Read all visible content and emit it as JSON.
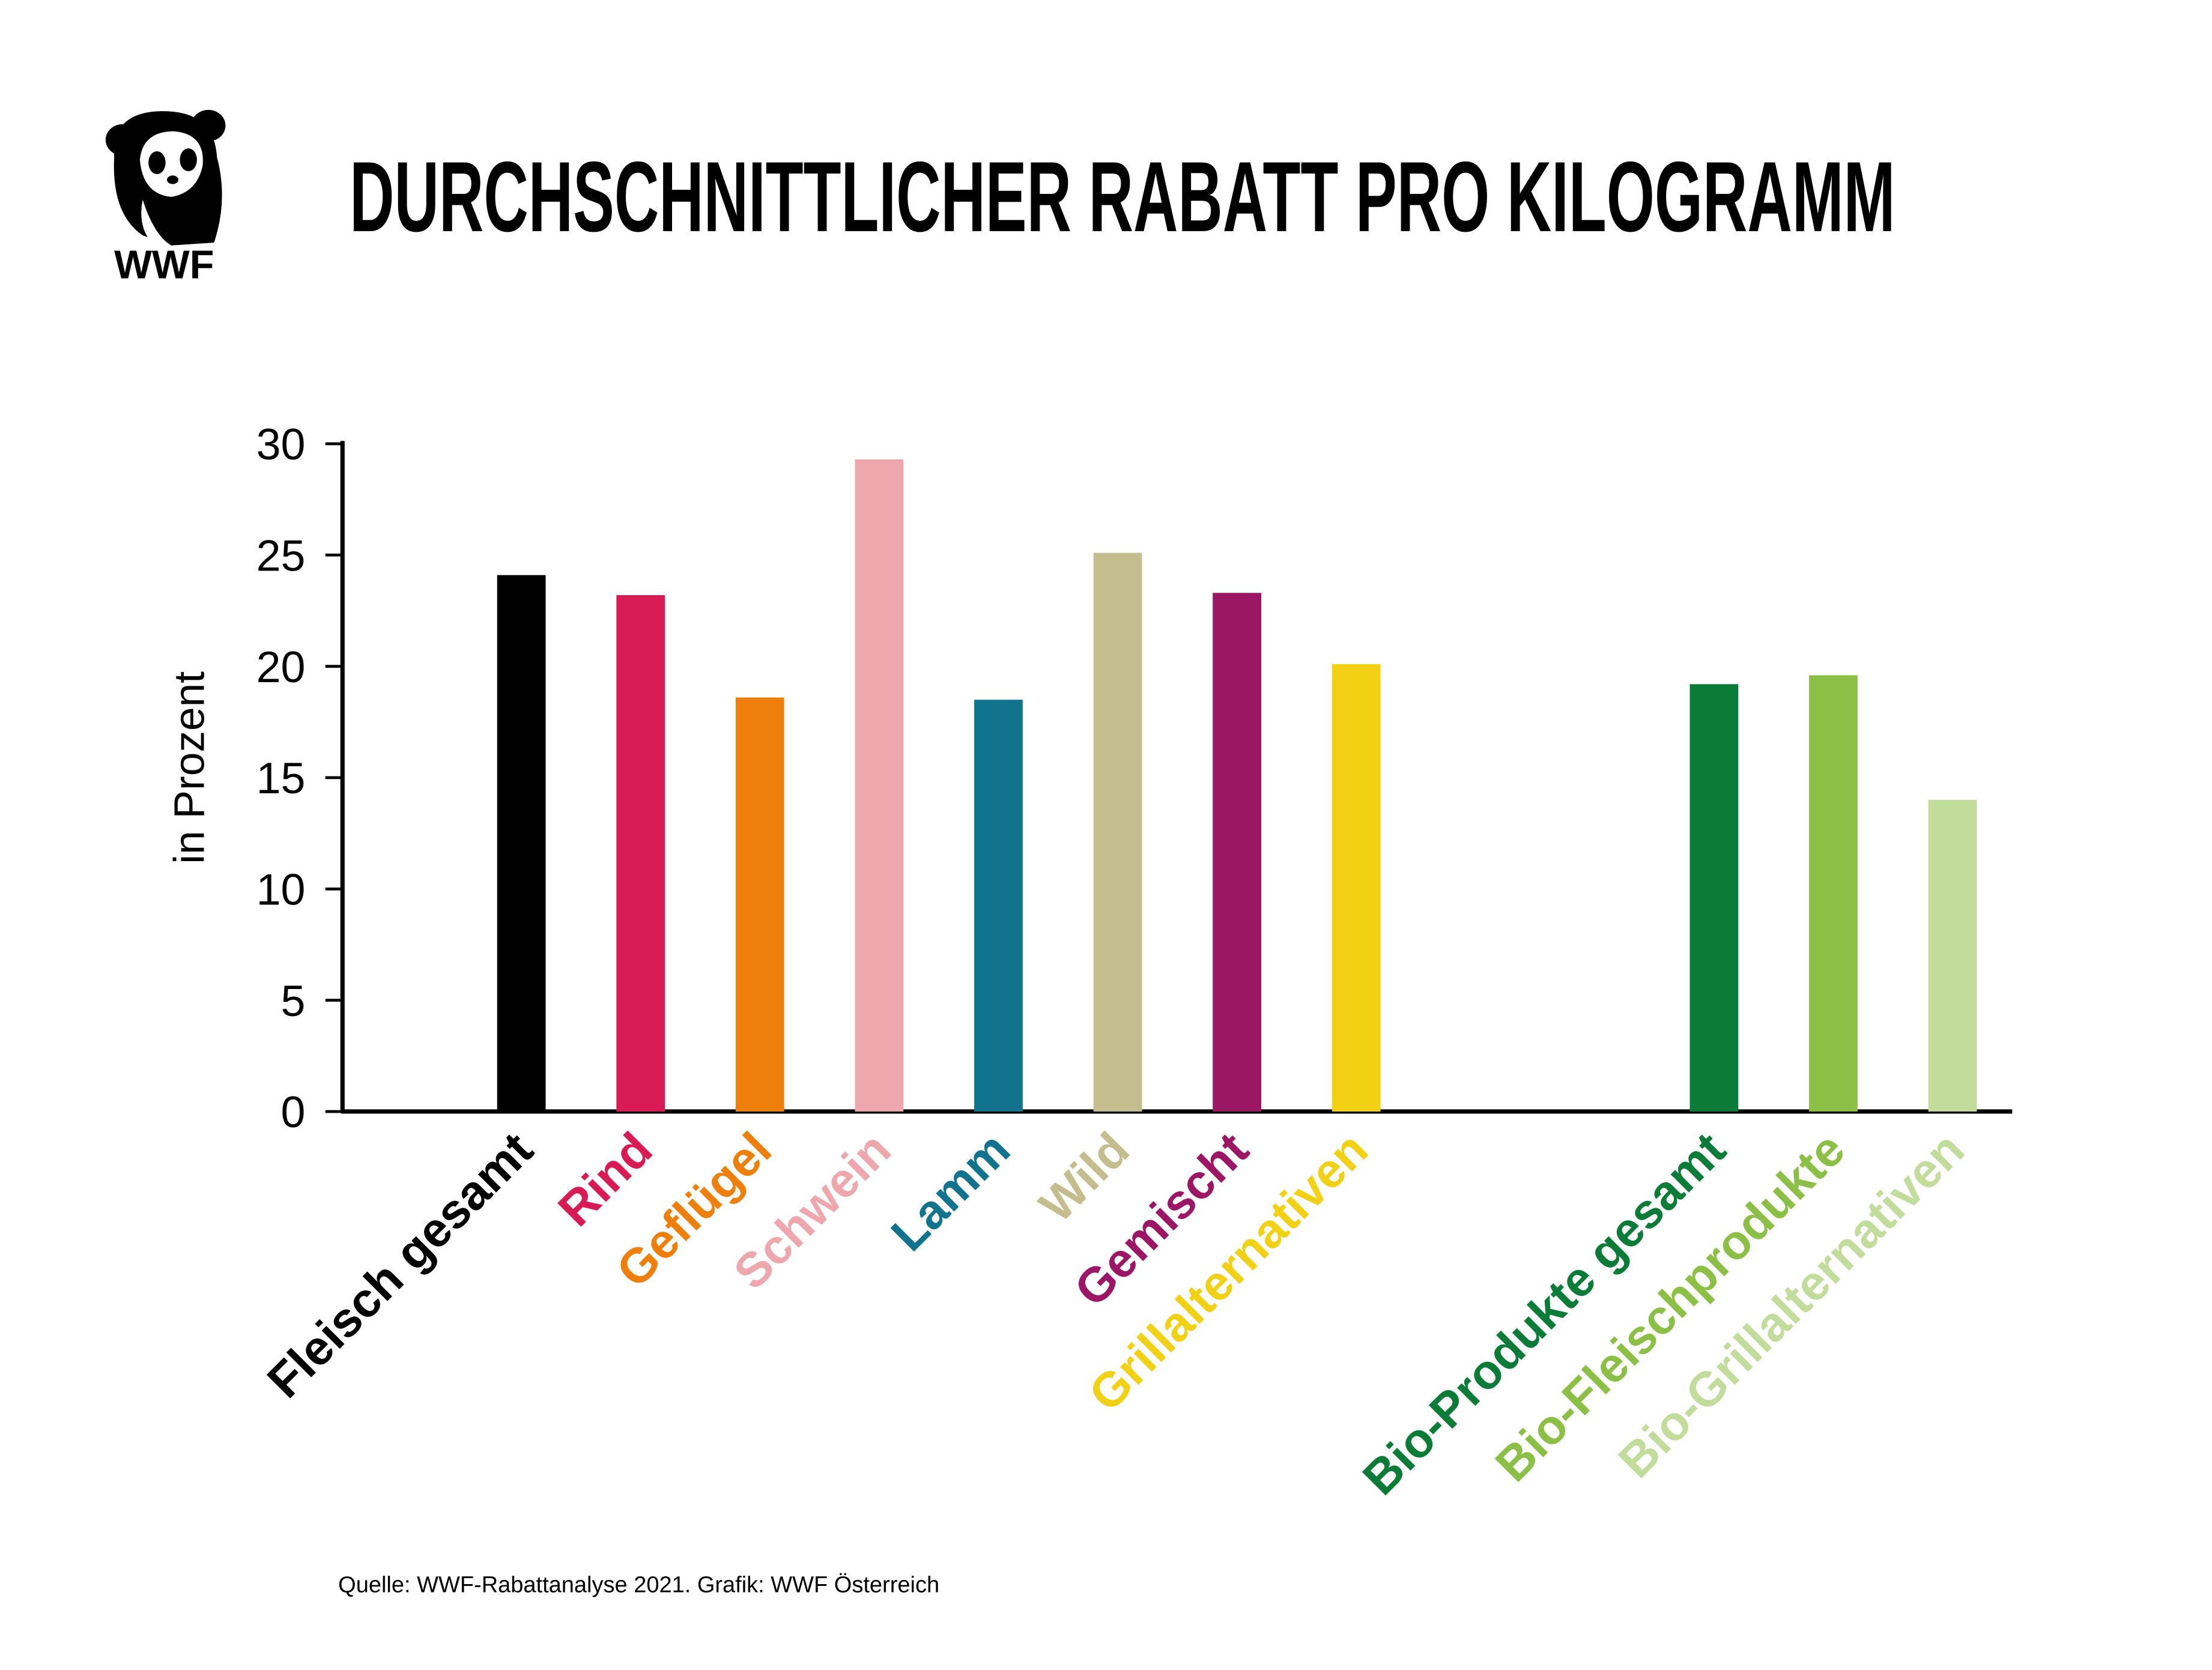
{
  "logo_text": "WWF",
  "chart_data": {
    "type": "bar",
    "title": "DURCHSCHNITTLICHER RABATT PRO KILOGRAMM",
    "y_label": "in Prozent",
    "source": "Quelle: WWF-Rabattanalyse 2021. Grafik: WWF Österreich",
    "categories": [
      null,
      "Fleisch gesamt",
      "Rind",
      "Geflügel",
      "Schwein",
      "Lamm",
      "Wild",
      "Gemischt",
      "Grillalternativen",
      null,
      null,
      "Bio-Produkte gesamt",
      "Bio-Fleischprodukte",
      "Bio-Grillalternativen"
    ],
    "values": [
      null,
      24.1,
      23.2,
      18.6,
      29.3,
      18.5,
      25.1,
      23.3,
      20.1,
      null,
      null,
      19.2,
      19.6,
      14.0
    ],
    "colors": [
      null,
      "#000000",
      "#d81b55",
      "#ee7f0b",
      "#eea8ad",
      "#12738f",
      "#c4bd8d",
      "#9b1766",
      "#f2d114",
      null,
      null,
      "#0b7c37",
      "#8bbf45",
      "#c2dc9c"
    ],
    "ylim": [
      0,
      30
    ],
    "yticks": [
      0,
      5,
      10,
      15,
      20,
      25,
      30
    ],
    "grid": false
  }
}
